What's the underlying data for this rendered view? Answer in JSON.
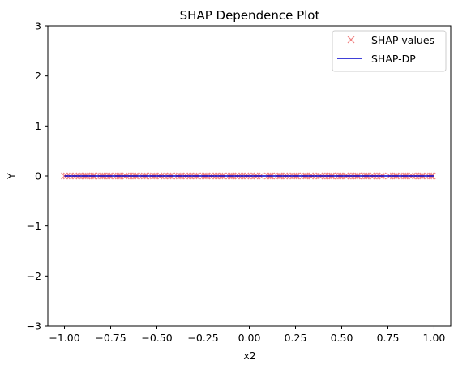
{
  "chart_data": {
    "type": "scatter",
    "title": "SHAP Dependence Plot",
    "xlabel": "x2",
    "ylabel": "Y",
    "xlim": [
      -1.09,
      1.09
    ],
    "ylim": [
      -3,
      3
    ],
    "x_ticks": [
      -1.0,
      -0.75,
      -0.5,
      -0.25,
      0.0,
      0.25,
      0.5,
      0.75,
      1.0
    ],
    "x_tick_labels": [
      "−1.00",
      "−0.75",
      "−0.50",
      "−0.25",
      "0.00",
      "0.25",
      "0.50",
      "0.75",
      "1.00"
    ],
    "y_ticks": [
      -3,
      -2,
      -1,
      0,
      1,
      2,
      3
    ],
    "y_tick_labels": [
      "−3",
      "−2",
      "−1",
      "0",
      "1",
      "2",
      "3"
    ],
    "grid": false,
    "legend_position": "top-right",
    "series": [
      {
        "name": "SHAP values",
        "kind": "markers",
        "marker": "x",
        "color": "#f08080",
        "x": [
          -1.0,
          -0.97,
          -0.95,
          -0.92,
          -0.9,
          -0.88,
          -0.86,
          -0.84,
          -0.81,
          -0.79,
          -0.77,
          -0.75,
          -0.72,
          -0.7,
          -0.68,
          -0.65,
          -0.63,
          -0.61,
          -0.58,
          -0.56,
          -0.53,
          -0.51,
          -0.49,
          -0.46,
          -0.44,
          -0.42,
          -0.39,
          -0.37,
          -0.35,
          -0.32,
          -0.3,
          -0.28,
          -0.25,
          -0.23,
          -0.21,
          -0.18,
          -0.16,
          -0.14,
          -0.11,
          -0.09,
          -0.07,
          -0.04,
          -0.02,
          0.01,
          0.03,
          0.06,
          0.1,
          0.12,
          0.15,
          0.17,
          0.19,
          0.22,
          0.24,
          0.26,
          0.29,
          0.31,
          0.33,
          0.36,
          0.38,
          0.41,
          0.43,
          0.45,
          0.48,
          0.5,
          0.52,
          0.55,
          0.57,
          0.59,
          0.62,
          0.64,
          0.66,
          0.69,
          0.71,
          0.76,
          0.78,
          0.8,
          0.83,
          0.85,
          0.87,
          0.9,
          0.92,
          0.94,
          0.97,
          0.99
        ],
        "y": [
          0,
          0,
          0,
          0,
          0,
          0,
          0,
          0,
          0,
          0,
          0,
          0,
          0,
          0,
          0,
          0,
          0,
          0,
          0,
          0,
          0,
          0,
          0,
          0,
          0,
          0,
          0,
          0,
          0,
          0,
          0,
          0,
          0,
          0,
          0,
          0,
          0,
          0,
          0,
          0,
          0,
          0,
          0,
          0,
          0,
          0,
          0,
          0,
          0,
          0,
          0,
          0,
          0,
          0,
          0,
          0,
          0,
          0,
          0,
          0,
          0,
          0,
          0,
          0,
          0,
          0,
          0,
          0,
          0,
          0,
          0,
          0,
          0,
          0,
          0,
          0,
          0,
          0,
          0,
          0,
          0,
          0,
          0,
          0
        ]
      },
      {
        "name": "SHAP-DP",
        "kind": "line",
        "color": "#0000cc",
        "x": [
          -1.0,
          1.0
        ],
        "y": [
          0,
          0
        ]
      }
    ]
  }
}
